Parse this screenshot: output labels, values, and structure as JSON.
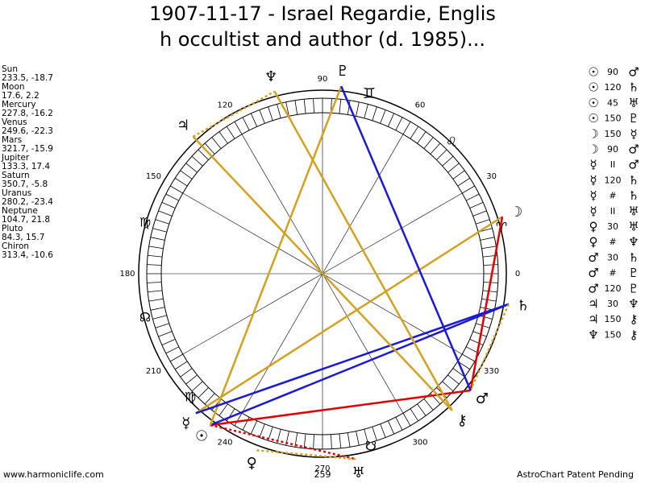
{
  "title": [
    "1907-11-17 - Israel Regardie, Englis",
    "h occultist and author (d. 1985)..."
  ],
  "planets": [
    {
      "name": "Sun",
      "pos": "233.5, -18.7",
      "glyph": "☉"
    },
    {
      "name": "Moon",
      "pos": "17.6, 2.2",
      "glyph": "☽"
    },
    {
      "name": "Mercury",
      "pos": "227.8, -16.2",
      "glyph": "☿"
    },
    {
      "name": "Venus",
      "pos": "249.6, -22.3",
      "glyph": "♀"
    },
    {
      "name": "Mars",
      "pos": "321.7, -15.9",
      "glyph": "♂"
    },
    {
      "name": "Jupiter",
      "pos": "133.3, 17.4",
      "glyph": "♃"
    },
    {
      "name": "Saturn",
      "pos": "350.7, -5.8",
      "glyph": "♄"
    },
    {
      "name": "Uranus",
      "pos": "280.2, -23.4",
      "glyph": "♅"
    },
    {
      "name": "Neptune",
      "pos": "104.7, 21.8",
      "glyph": "♆"
    },
    {
      "name": "Pluto",
      "pos": "84.3, 15.7",
      "glyph": "♇"
    },
    {
      "name": "Chiron",
      "pos": "313.4, -10.6",
      "glyph": "⚷"
    }
  ],
  "aspects": [
    {
      "a": "☉",
      "kind": "90",
      "b": "♂"
    },
    {
      "a": "☉",
      "kind": "120",
      "b": "♄"
    },
    {
      "a": "☉",
      "kind": "45",
      "b": "♅"
    },
    {
      "a": "☉",
      "kind": "150",
      "b": "♇"
    },
    {
      "a": "☽",
      "kind": "150",
      "b": "☿"
    },
    {
      "a": "☽",
      "kind": "90",
      "b": "♂"
    },
    {
      "a": "☿",
      "kind": "II",
      "b": "♂"
    },
    {
      "a": "☿",
      "kind": "120",
      "b": "♄"
    },
    {
      "a": "☿",
      "kind": "#",
      "b": "♄"
    },
    {
      "a": "☿",
      "kind": "II",
      "b": "♅"
    },
    {
      "a": "♀",
      "kind": "30",
      "b": "♅"
    },
    {
      "a": "♀",
      "kind": "#",
      "b": "♆"
    },
    {
      "a": "♂",
      "kind": "30",
      "b": "♄"
    },
    {
      "a": "♂",
      "kind": "#",
      "b": "♇"
    },
    {
      "a": "♂",
      "kind": "120",
      "b": "♇"
    },
    {
      "a": "♃",
      "kind": "30",
      "b": "♆"
    },
    {
      "a": "♃",
      "kind": "150",
      "b": "⚷"
    },
    {
      "a": "♆",
      "kind": "150",
      "b": "⚷"
    }
  ],
  "degrees": [
    0,
    30,
    60,
    90,
    120,
    150,
    180,
    210,
    240,
    270,
    300,
    330
  ],
  "signs": [
    "♊",
    "♌",
    "♈",
    "♍",
    "☊",
    "♍",
    "☋"
  ],
  "marker": "259",
  "footer": {
    "left": "www.harmoniclife.com",
    "right": "AstroChart Patent Pending"
  }
}
